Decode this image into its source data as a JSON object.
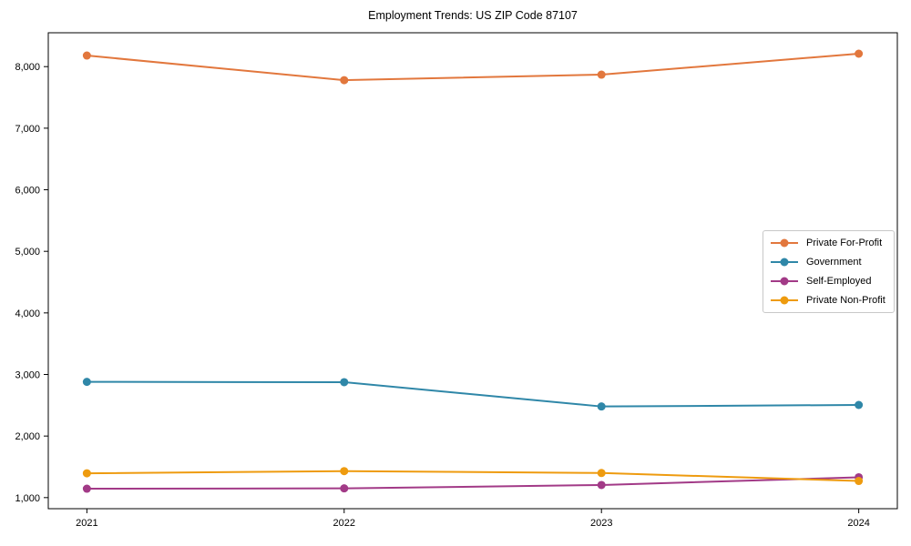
{
  "chart_data": {
    "type": "line",
    "title": "Employment Trends: US ZIP Code 87107",
    "x": [
      2021,
      2022,
      2023,
      2024
    ],
    "x_tick_labels": [
      "2021",
      "2022",
      "2023",
      "2024"
    ],
    "series": [
      {
        "name": "Private For-Profit",
        "color": "#e2773d",
        "values": [
          8180,
          7780,
          7870,
          8210
        ]
      },
      {
        "name": "Government",
        "color": "#2f87a8",
        "values": [
          2880,
          2875,
          2480,
          2505
        ]
      },
      {
        "name": "Self-Employed",
        "color": "#a23a87",
        "values": [
          1145,
          1150,
          1205,
          1330
        ]
      },
      {
        "name": "Private Non-Profit",
        "color": "#ee9b0f",
        "values": [
          1395,
          1430,
          1400,
          1270
        ]
      }
    ],
    "yticks": [
      1000,
      2000,
      3000,
      4000,
      5000,
      6000,
      7000,
      8000
    ],
    "ytick_labels": [
      "1,000",
      "2,000",
      "3,000",
      "4,000",
      "5,000",
      "6,000",
      "7,000",
      "8,000"
    ],
    "xlim": [
      2020.85,
      2024.15
    ],
    "ylim": [
      820,
      8550
    ],
    "grid": false,
    "legend_position": "center-right",
    "marker": "circle",
    "background": "#ffffff",
    "axis_color": "#000000"
  }
}
